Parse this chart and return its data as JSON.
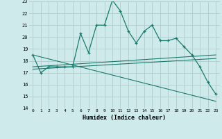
{
  "xlabel": "Humidex (Indice chaleur)",
  "bg_color": "#ceeaea",
  "grid_color": "#b0cccc",
  "line_color": "#1a7a6e",
  "xlim": [
    -0.5,
    23.5
  ],
  "ylim": [
    14,
    23
  ],
  "yticks": [
    14,
    15,
    16,
    17,
    18,
    19,
    20,
    21,
    22,
    23
  ],
  "xticks": [
    0,
    1,
    2,
    3,
    4,
    5,
    6,
    7,
    8,
    9,
    10,
    11,
    12,
    13,
    14,
    15,
    16,
    17,
    18,
    19,
    20,
    21,
    22,
    23
  ],
  "series1_x": [
    0,
    1,
    2,
    3,
    4,
    5,
    6,
    7,
    8,
    9,
    10,
    11,
    12,
    13,
    14,
    15,
    16,
    17,
    18,
    19,
    20,
    21,
    22,
    23
  ],
  "series1_y": [
    18.5,
    17.0,
    17.5,
    17.5,
    17.5,
    17.5,
    20.3,
    18.7,
    21.0,
    21.0,
    23.1,
    22.2,
    20.5,
    19.5,
    20.5,
    21.0,
    19.7,
    19.7,
    19.9,
    19.2,
    18.5,
    17.5,
    16.2,
    15.2
  ],
  "series2_x": [
    0,
    23
  ],
  "series2_y": [
    18.5,
    14.6
  ],
  "series3_x": [
    0,
    23
  ],
  "series3_y": [
    17.5,
    18.5
  ],
  "series4_x": [
    0,
    23
  ],
  "series4_y": [
    17.3,
    18.2
  ]
}
